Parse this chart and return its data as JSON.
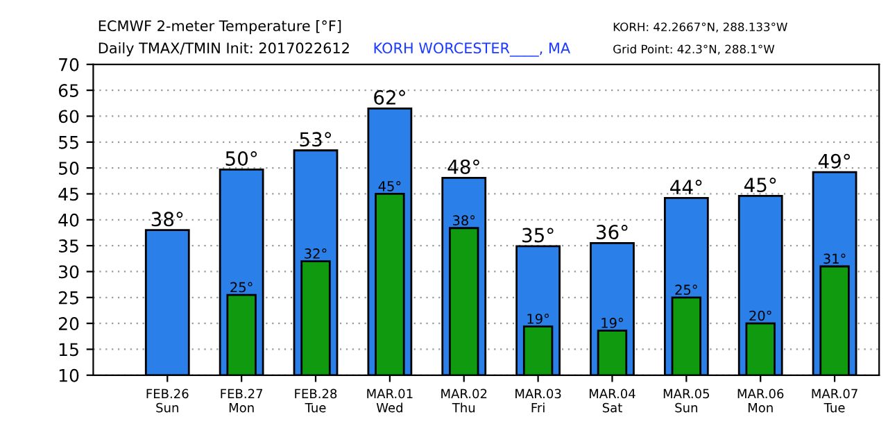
{
  "chart_data": {
    "type": "bar",
    "title": "ECMWF 2-meter Temperature [°F]",
    "subtitle": "Daily TMAX/TMIN Init: 2017022612",
    "annotations": [
      "KORH WORCESTER____, MA",
      "KORH: 42.2667°N, 288.133°W",
      "Grid Point: 42.3°N, 288.1°W"
    ],
    "categories": [
      "FEB.26\nSun",
      "FEB.27\nMon",
      "FEB.28\nTue",
      "MAR.01\nWed",
      "MAR.02\nThu",
      "MAR.03\nFri",
      "MAR.04\nSat",
      "MAR.05\nSun",
      "MAR.06\nMon",
      "MAR.07\nTue"
    ],
    "series": [
      {
        "color": "#2a7fe8",
        "values": [
          38.0,
          49.7,
          53.4,
          61.5,
          48.1,
          34.9,
          35.5,
          44.2,
          44.6,
          49.2
        ],
        "value_labels": [
          "38°",
          "50°",
          "53°",
          "62°",
          "48°",
          "35°",
          "36°",
          "44°",
          "45°",
          "49°"
        ]
      },
      {
        "color": "#0f9a0f",
        "values": [
          null,
          25.5,
          32.0,
          45.0,
          38.4,
          19.4,
          18.6,
          25.0,
          20.0,
          31.0
        ],
        "value_labels": [
          null,
          "25°",
          "32°",
          "45°",
          "38°",
          "19°",
          "19°",
          "25°",
          "20°",
          "31°"
        ]
      }
    ],
    "ylim": [
      10,
      70
    ],
    "yticks": [
      10,
      15,
      20,
      25,
      30,
      35,
      40,
      45,
      50,
      55,
      60,
      65,
      70
    ],
    "grid": "y",
    "legend": false
  }
}
